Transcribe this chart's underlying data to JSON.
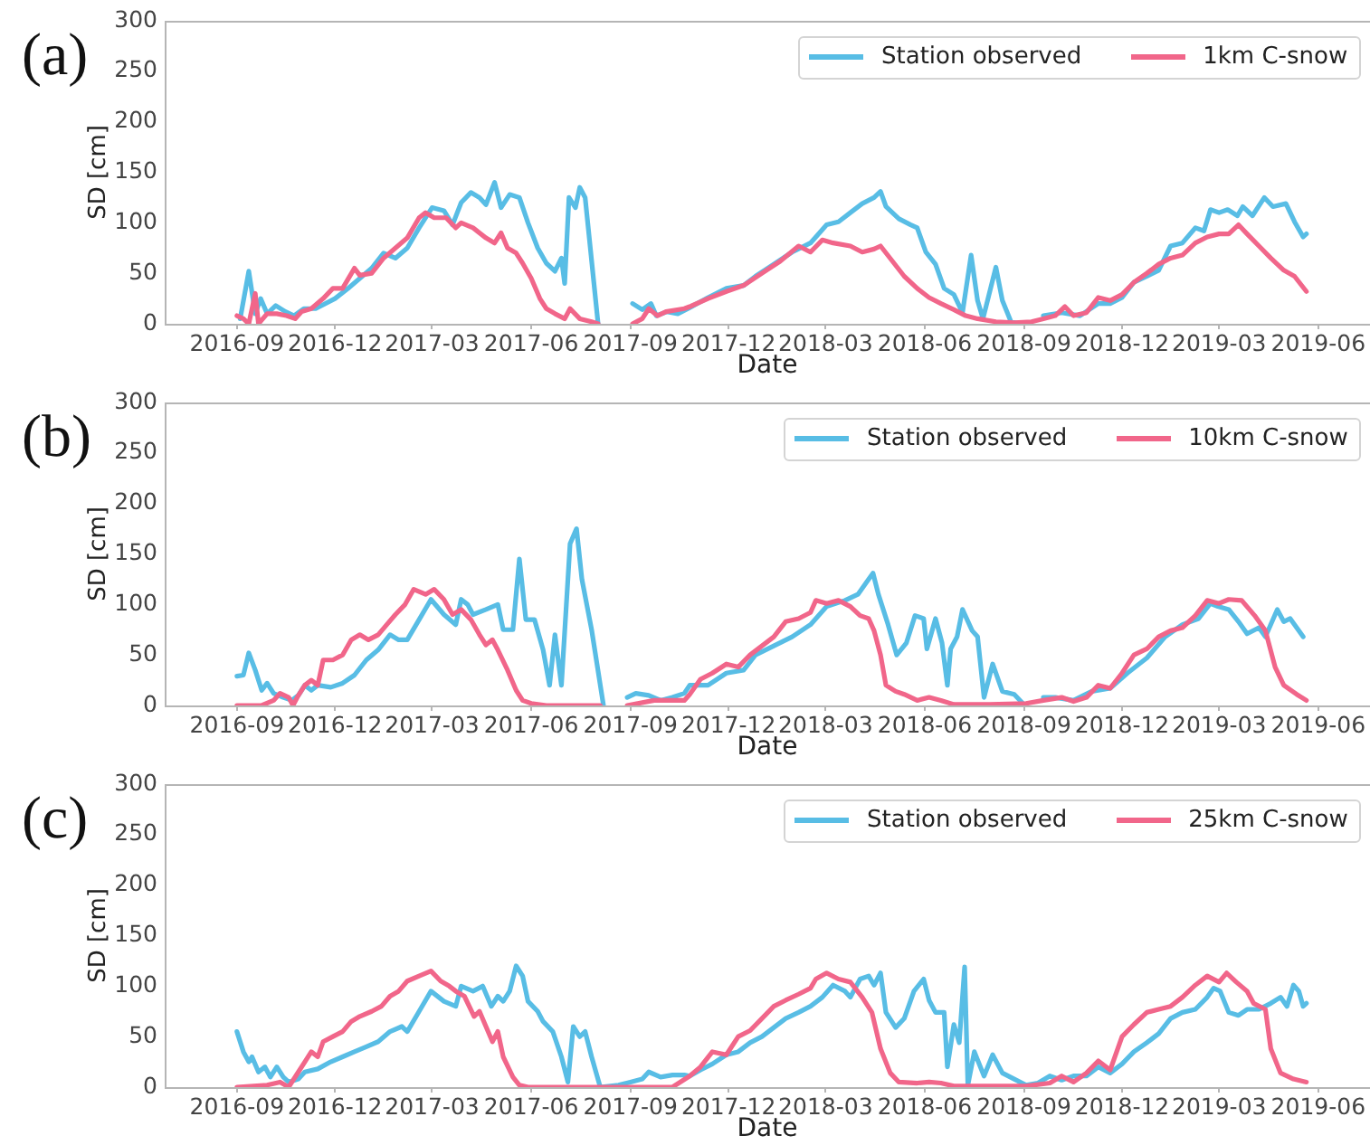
{
  "chart_data": [
    {
      "type": "line",
      "title": "(a)",
      "xlabel": "Date",
      "ylabel": "SD [cm]",
      "xlim": [
        "2016-06-26",
        "2019-07-19"
      ],
      "xticks": [
        "2016-09",
        "2016-12",
        "2017-03",
        "2017-06",
        "2017-09",
        "2017-12",
        "2018-03",
        "2018-06",
        "2018-09",
        "2018-12",
        "2019-03",
        "2019-06"
      ],
      "ylim": [
        0,
        300
      ],
      "yticks": [
        0,
        50,
        100,
        150,
        200,
        250,
        300
      ],
      "grid": false,
      "legend": "top right",
      "marker": "none",
      "series": [
        {
          "name": "Station observed",
          "color": "#58bde5",
          "x": [
            "2016-09-04",
            "2016-09-12",
            "2016-09-18",
            "2016-09-23",
            "2016-09-29",
            "2016-10-07",
            "2016-10-16",
            "2016-10-24",
            "2016-11-02",
            "2016-11-13",
            "2016-12-01",
            "2016-12-13",
            "2016-12-24",
            "2017-01-04",
            "2017-01-15",
            "2017-01-26",
            "2017-02-06",
            "2017-02-17",
            "2017-03-01",
            "2017-03-12",
            "2017-03-20",
            "2017-03-28",
            "2017-04-06",
            "2017-04-14",
            "2017-04-20",
            "2017-04-28",
            "2017-05-04",
            "2017-05-12",
            "2017-05-21",
            "2017-05-29",
            "2017-06-07",
            "2017-06-15",
            "2017-06-23",
            "2017-06-29",
            "2017-07-02",
            "2017-07-06",
            "2017-07-12",
            "2017-07-16",
            "2017-07-21",
            "2017-08-02",
            "2017-08-18",
            "2017-09-03",
            "2017-09-12",
            "2017-09-20",
            "2017-09-25",
            "2017-10-05",
            "2017-10-15",
            "2017-10-26",
            "2017-11-12",
            "2017-11-29",
            "2017-12-15",
            "2017-12-26",
            "2018-01-12",
            "2018-01-29",
            "2018-02-15",
            "2018-03-02",
            "2018-03-13",
            "2018-03-24",
            "2018-04-04",
            "2018-04-15",
            "2018-04-21",
            "2018-04-26",
            "2018-05-08",
            "2018-05-19",
            "2018-05-25",
            "2018-06-02",
            "2018-06-11",
            "2018-06-19",
            "2018-06-28",
            "2018-07-06",
            "2018-07-14",
            "2018-07-20",
            "2018-07-25",
            "2018-08-06",
            "2018-08-12",
            "2018-08-20",
            "2018-08-28",
            "2018-09-08",
            "2018-09-19",
            "2018-10-06",
            "2018-10-23",
            "2018-11-09",
            "2018-11-20",
            "2018-12-01",
            "2018-12-12",
            "2018-12-24",
            "2019-01-04",
            "2019-01-15",
            "2019-01-26",
            "2019-02-07",
            "2019-02-15",
            "2019-02-21",
            "2019-03-01",
            "2019-03-09",
            "2019-03-18",
            "2019-03-23",
            "2019-04-01",
            "2019-04-12",
            "2019-04-20",
            "2019-05-02",
            "2019-05-10",
            "2019-05-18",
            "2019-05-21"
          ],
          "values": [
            5,
            52,
            10,
            25,
            10,
            18,
            12,
            8,
            15,
            15,
            25,
            35,
            45,
            55,
            70,
            65,
            75,
            95,
            115,
            112,
            98,
            120,
            130,
            125,
            118,
            140,
            115,
            128,
            125,
            100,
            75,
            60,
            52,
            65,
            40,
            125,
            115,
            135,
            125,
            0,
            null,
            20,
            14,
            20,
            8,
            12,
            10,
            16,
            26,
            35,
            38,
            47,
            59,
            71,
            80,
            98,
            101,
            110,
            119,
            125,
            131,
            116,
            104,
            98,
            95,
            71,
            59,
            35,
            29,
            11,
            68,
            23,
            5,
            56,
            23,
            2,
            0,
            null,
            8,
            11,
            8,
            20,
            20,
            26,
            41,
            47,
            53,
            77,
            80,
            95,
            92,
            113,
            110,
            113,
            107,
            116,
            107,
            125,
            116,
            119,
            101,
            86,
            89
          ]
        },
        {
          "name": "1km C-snow",
          "color": "#f1668a",
          "x": [
            "2016-09-01",
            "2016-09-07",
            "2016-09-12",
            "2016-09-18",
            "2016-09-21",
            "2016-09-29",
            "2016-10-08",
            "2016-10-17",
            "2016-10-25",
            "2016-10-31",
            "2016-11-09",
            "2016-11-20",
            "2016-11-29",
            "2016-12-08",
            "2016-12-19",
            "2016-12-24",
            "2017-01-04",
            "2017-01-15",
            "2017-01-26",
            "2017-02-06",
            "2017-02-17",
            "2017-02-23",
            "2017-03-03",
            "2017-03-14",
            "2017-03-23",
            "2017-03-28",
            "2017-04-08",
            "2017-04-20",
            "2017-04-28",
            "2017-05-04",
            "2017-05-10",
            "2017-05-18",
            "2017-05-24",
            "2017-06-01",
            "2017-06-09",
            "2017-06-15",
            "2017-06-23",
            "2017-07-02",
            "2017-07-07",
            "2017-07-16",
            "2017-07-27",
            "2017-08-02",
            "2017-08-18",
            "2017-09-03",
            "2017-09-12",
            "2017-09-18",
            "2017-09-26",
            "2017-10-04",
            "2017-10-21",
            "2017-10-26",
            "2017-11-12",
            "2017-11-29",
            "2017-12-15",
            "2018-01-01",
            "2018-01-18",
            "2018-02-04",
            "2018-02-15",
            "2018-02-26",
            "2018-03-08",
            "2018-03-24",
            "2018-04-04",
            "2018-04-15",
            "2018-04-21",
            "2018-05-02",
            "2018-05-13",
            "2018-05-25",
            "2018-06-05",
            "2018-06-16",
            "2018-06-28",
            "2018-07-09",
            "2018-07-20",
            "2018-08-06",
            "2018-08-23",
            "2018-09-08",
            "2018-09-19",
            "2018-09-30",
            "2018-10-09",
            "2018-10-17",
            "2018-10-29",
            "2018-11-09",
            "2018-11-20",
            "2018-12-01",
            "2018-12-12",
            "2018-12-24",
            "2019-01-04",
            "2019-01-15",
            "2019-01-26",
            "2019-02-07",
            "2019-02-18",
            "2019-03-01",
            "2019-03-10",
            "2019-03-19",
            "2019-03-27",
            "2019-04-07",
            "2019-04-18",
            "2019-04-30",
            "2019-05-10",
            "2019-05-21"
          ],
          "values": [
            8,
            5,
            0,
            30,
            0,
            10,
            10,
            8,
            5,
            12,
            15,
            25,
            35,
            35,
            55,
            48,
            50,
            65,
            75,
            85,
            105,
            110,
            105,
            105,
            95,
            100,
            95,
            85,
            80,
            90,
            75,
            70,
            60,
            45,
            25,
            15,
            10,
            5,
            15,
            5,
            2,
            0,
            null,
            0,
            5,
            15,
            8,
            12,
            15,
            17,
            25,
            32,
            38,
            50,
            62,
            77,
            71,
            83,
            80,
            77,
            71,
            74,
            77,
            62,
            47,
            35,
            26,
            20,
            14,
            8,
            5,
            2,
            1,
            2,
            5,
            8,
            17,
            8,
            11,
            26,
            23,
            29,
            41,
            50,
            59,
            65,
            68,
            80,
            86,
            89,
            89,
            98,
            89,
            77,
            65,
            53,
            47,
            32
          ]
        }
      ]
    },
    {
      "type": "line",
      "title": "(b)",
      "xlabel": "Date",
      "ylabel": "SD [cm]",
      "xlim": [
        "2016-06-26",
        "2019-07-19"
      ],
      "xticks": [
        "2016-09",
        "2016-12",
        "2017-03",
        "2017-06",
        "2017-09",
        "2017-12",
        "2018-03",
        "2018-06",
        "2018-09",
        "2018-12",
        "2019-03",
        "2019-06"
      ],
      "ylim": [
        0,
        300
      ],
      "yticks": [
        0,
        50,
        100,
        150,
        200,
        250,
        300
      ],
      "grid": false,
      "legend": "top right",
      "marker": "none",
      "series": [
        {
          "name": "Station observed",
          "color": "#58bde5",
          "x": [
            "2016-09-01",
            "2016-09-07",
            "2016-09-12",
            "2016-09-18",
            "2016-09-24",
            "2016-09-29",
            "2016-10-05",
            "2016-10-14",
            "2016-10-22",
            "2016-10-28",
            "2016-11-03",
            "2016-11-09",
            "2016-11-15",
            "2016-11-27",
            "2016-12-08",
            "2016-12-19",
            "2016-12-30",
            "2017-01-10",
            "2017-01-21",
            "2017-01-29",
            "2017-02-06",
            "2017-02-17",
            "2017-02-28",
            "2017-03-12",
            "2017-03-23",
            "2017-03-28",
            "2017-04-03",
            "2017-04-08",
            "2017-04-20",
            "2017-05-01",
            "2017-05-06",
            "2017-05-15",
            "2017-05-21",
            "2017-05-27",
            "2017-06-04",
            "2017-06-12",
            "2017-06-18",
            "2017-06-23",
            "2017-06-29",
            "2017-07-07",
            "2017-07-13",
            "2017-07-18",
            "2017-07-27",
            "2017-08-07",
            "2017-08-18",
            "2017-08-29",
            "2017-09-06",
            "2017-09-18",
            "2017-09-29",
            "2017-10-10",
            "2017-10-21",
            "2017-10-26",
            "2017-11-12",
            "2017-11-29",
            "2017-12-15",
            "2017-12-26",
            "2018-01-12",
            "2018-01-29",
            "2018-02-15",
            "2018-03-02",
            "2018-03-19",
            "2018-03-31",
            "2018-04-08",
            "2018-04-14",
            "2018-04-19",
            "2018-04-28",
            "2018-05-06",
            "2018-05-15",
            "2018-05-23",
            "2018-05-31",
            "2018-06-03",
            "2018-06-11",
            "2018-06-17",
            "2018-06-22",
            "2018-06-25",
            "2018-07-01",
            "2018-07-06",
            "2018-07-15",
            "2018-07-20",
            "2018-07-26",
            "2018-08-03",
            "2018-08-12",
            "2018-08-23",
            "2018-08-31",
            "2018-09-10",
            "2018-09-19",
            "2018-09-30",
            "2018-10-17",
            "2018-11-03",
            "2018-11-20",
            "2018-12-06",
            "2018-12-24",
            "2019-01-10",
            "2019-01-26",
            "2019-02-10",
            "2019-02-21",
            "2019-02-28",
            "2019-03-10",
            "2019-03-19",
            "2019-03-27",
            "2019-04-07",
            "2019-04-13",
            "2019-04-24",
            "2019-04-30",
            "2019-05-06",
            "2019-05-12",
            "2019-05-18"
          ],
          "values": [
            29,
            30,
            52,
            35,
            15,
            22,
            12,
            8,
            5,
            10,
            20,
            15,
            20,
            18,
            22,
            30,
            45,
            55,
            70,
            65,
            65,
            85,
            105,
            90,
            80,
            105,
            100,
            90,
            95,
            100,
            75,
            75,
            145,
            85,
            85,
            55,
            20,
            70,
            20,
            160,
            175,
            125,
            75,
            0,
            null,
            8,
            12,
            10,
            5,
            8,
            12,
            20,
            20,
            32,
            35,
            50,
            59,
            68,
            80,
            98,
            104,
            110,
            122,
            131,
            110,
            80,
            50,
            62,
            89,
            86,
            56,
            86,
            62,
            20,
            56,
            68,
            95,
            74,
            68,
            8,
            41,
            14,
            11,
            2,
            null,
            8,
            8,
            5,
            14,
            17,
            32,
            47,
            68,
            80,
            86,
            101,
            98,
            95,
            83,
            71,
            77,
            68,
            95,
            83,
            86,
            77,
            68
          ]
        },
        {
          "name": "10km C-snow",
          "color": "#f1668a",
          "x": [
            "2016-09-01",
            "2016-09-24",
            "2016-10-05",
            "2016-10-11",
            "2016-10-19",
            "2016-10-23",
            "2016-10-28",
            "2016-11-03",
            "2016-11-09",
            "2016-11-15",
            "2016-11-20",
            "2016-11-29",
            "2016-12-08",
            "2016-12-16",
            "2016-12-24",
            "2017-01-01",
            "2017-01-10",
            "2017-01-18",
            "2017-01-26",
            "2017-02-04",
            "2017-02-12",
            "2017-02-23",
            "2017-03-03",
            "2017-03-12",
            "2017-03-20",
            "2017-03-28",
            "2017-04-06",
            "2017-04-14",
            "2017-04-20",
            "2017-04-26",
            "2017-05-01",
            "2017-05-10",
            "2017-05-18",
            "2017-05-24",
            "2017-06-01",
            "2017-06-15",
            "2017-08-04",
            "2017-08-18",
            "2017-08-29",
            "2017-09-23",
            "2017-10-21",
            "2017-10-26",
            "2017-11-05",
            "2017-11-16",
            "2017-11-29",
            "2017-12-10",
            "2017-12-21",
            "2018-01-01",
            "2018-01-12",
            "2018-01-23",
            "2018-02-04",
            "2018-02-15",
            "2018-02-20",
            "2018-03-02",
            "2018-03-13",
            "2018-03-24",
            "2018-04-02",
            "2018-04-10",
            "2018-04-15",
            "2018-04-21",
            "2018-04-26",
            "2018-05-05",
            "2018-05-13",
            "2018-05-25",
            "2018-06-05",
            "2018-06-16",
            "2018-06-28",
            "2018-07-31",
            "2018-09-03",
            "2018-09-19",
            "2018-10-06",
            "2018-10-17",
            "2018-10-29",
            "2018-11-09",
            "2018-11-20",
            "2018-12-01",
            "2018-12-12",
            "2018-12-24",
            "2019-01-04",
            "2019-01-15",
            "2019-01-26",
            "2019-02-07",
            "2019-02-18",
            "2019-03-01",
            "2019-03-10",
            "2019-03-22",
            "2019-04-03",
            "2019-04-13",
            "2019-04-22",
            "2019-04-30",
            "2019-05-12",
            "2019-05-21"
          ],
          "values": [
            0,
            0,
            5,
            12,
            8,
            0,
            10,
            20,
            25,
            20,
            45,
            45,
            50,
            65,
            70,
            65,
            70,
            80,
            90,
            100,
            115,
            110,
            115,
            105,
            90,
            95,
            85,
            70,
            60,
            65,
            55,
            35,
            15,
            5,
            2,
            0,
            0,
            null,
            0,
            5,
            5,
            11,
            26,
            32,
            41,
            38,
            50,
            59,
            68,
            83,
            86,
            92,
            104,
            101,
            104,
            98,
            89,
            86,
            74,
            50,
            20,
            14,
            11,
            5,
            8,
            5,
            1,
            1,
            2,
            5,
            8,
            4,
            8,
            20,
            17,
            32,
            50,
            56,
            68,
            74,
            77,
            89,
            104,
            101,
            105,
            104,
            89,
            74,
            38,
            20,
            11,
            5
          ]
        }
      ]
    },
    {
      "type": "line",
      "title": "(c)",
      "xlabel": "Date",
      "ylabel": "SD [cm]",
      "xlim": [
        "2016-06-26",
        "2019-07-19"
      ],
      "xticks": [
        "2016-09",
        "2016-12",
        "2017-03",
        "2017-06",
        "2017-09",
        "2017-12",
        "2018-03",
        "2018-06",
        "2018-09",
        "2018-12",
        "2019-03",
        "2019-06"
      ],
      "ylim": [
        0,
        300
      ],
      "yticks": [
        0,
        50,
        100,
        150,
        200,
        250,
        300
      ],
      "grid": false,
      "legend": "top right",
      "marker": "none",
      "series": [
        {
          "name": "Station observed",
          "color": "#58bde5",
          "x": [
            "2016-09-01",
            "2016-09-07",
            "2016-09-12",
            "2016-09-15",
            "2016-09-21",
            "2016-09-27",
            "2016-10-02",
            "2016-10-08",
            "2016-10-14",
            "2016-10-19",
            "2016-10-28",
            "2016-11-03",
            "2016-11-15",
            "2016-11-27",
            "2016-12-08",
            "2016-12-19",
            "2016-12-30",
            "2017-01-10",
            "2017-01-21",
            "2017-02-01",
            "2017-02-06",
            "2017-02-17",
            "2017-02-28",
            "2017-03-12",
            "2017-03-23",
            "2017-03-28",
            "2017-04-08",
            "2017-04-17",
            "2017-04-25",
            "2017-05-01",
            "2017-05-06",
            "2017-05-12",
            "2017-05-18",
            "2017-05-24",
            "2017-05-29",
            "2017-06-07",
            "2017-06-12",
            "2017-06-21",
            "2017-06-29",
            "2017-07-05",
            "2017-07-10",
            "2017-07-16",
            "2017-07-21",
            "2017-07-27",
            "2017-08-04",
            "2017-08-21",
            "2017-09-01",
            "2017-09-12",
            "2017-09-18",
            "2017-09-29",
            "2017-10-10",
            "2017-10-21",
            "2017-10-26",
            "2017-11-05",
            "2017-11-16",
            "2017-11-29",
            "2017-12-10",
            "2017-12-21",
            "2018-01-01",
            "2018-01-12",
            "2018-01-23",
            "2018-02-04",
            "2018-02-15",
            "2018-02-26",
            "2018-03-08",
            "2018-03-19",
            "2018-03-24",
            "2018-04-02",
            "2018-04-10",
            "2018-04-15",
            "2018-04-21",
            "2018-04-26",
            "2018-05-05",
            "2018-05-13",
            "2018-05-22",
            "2018-05-31",
            "2018-06-05",
            "2018-06-11",
            "2018-06-19",
            "2018-06-22",
            "2018-06-28",
            "2018-07-03",
            "2018-07-08",
            "2018-07-11",
            "2018-07-17",
            "2018-07-26",
            "2018-08-03",
            "2018-08-12",
            "2018-08-23",
            "2018-09-03",
            "2018-09-14",
            "2018-09-25",
            "2018-10-06",
            "2018-10-17",
            "2018-10-29",
            "2018-11-09",
            "2018-11-20",
            "2018-12-01",
            "2018-12-12",
            "2018-12-24",
            "2019-01-04",
            "2019-01-15",
            "2019-01-26",
            "2019-02-07",
            "2019-02-18",
            "2019-02-24",
            "2019-03-02",
            "2019-03-10",
            "2019-03-19",
            "2019-03-27",
            "2019-04-07",
            "2019-04-18",
            "2019-04-27",
            "2019-05-03",
            "2019-05-09",
            "2019-05-14",
            "2019-05-18",
            "2019-05-21"
          ],
          "values": [
            55,
            35,
            25,
            30,
            15,
            20,
            10,
            20,
            10,
            5,
            8,
            15,
            18,
            25,
            30,
            35,
            40,
            45,
            55,
            60,
            55,
            75,
            95,
            85,
            80,
            100,
            95,
            100,
            80,
            90,
            85,
            95,
            120,
            110,
            85,
            75,
            65,
            55,
            30,
            5,
            60,
            50,
            55,
            30,
            0,
            2,
            5,
            8,
            15,
            10,
            12,
            12,
            11,
            17,
            23,
            32,
            35,
            44,
            50,
            59,
            68,
            74,
            80,
            89,
            101,
            95,
            89,
            107,
            110,
            101,
            113,
            74,
            59,
            68,
            95,
            107,
            86,
            74,
            74,
            20,
            62,
            44,
            119,
            2,
            35,
            11,
            32,
            14,
            8,
            2,
            4,
            11,
            7,
            11,
            11,
            20,
            14,
            23,
            35,
            44,
            53,
            68,
            74,
            77,
            89,
            98,
            95,
            74,
            71,
            77,
            77,
            83,
            89,
            80,
            101,
            95,
            80,
            83
          ]
        },
        {
          "name": "25km C-snow",
          "color": "#f1668a",
          "x": [
            "2016-09-01",
            "2016-09-29",
            "2016-10-11",
            "2016-10-19",
            "2016-10-28",
            "2016-11-03",
            "2016-11-09",
            "2016-11-15",
            "2016-11-20",
            "2016-11-29",
            "2016-12-08",
            "2016-12-16",
            "2016-12-24",
            "2017-01-04",
            "2017-01-13",
            "2017-01-21",
            "2017-01-29",
            "2017-02-06",
            "2017-02-17",
            "2017-02-28",
            "2017-03-09",
            "2017-03-17",
            "2017-03-23",
            "2017-03-31",
            "2017-04-09",
            "2017-04-14",
            "2017-04-20",
            "2017-04-26",
            "2017-05-01",
            "2017-05-06",
            "2017-05-15",
            "2017-05-21",
            "2017-05-29",
            "2017-10-10",
            "2017-10-26",
            "2017-11-05",
            "2017-11-16",
            "2017-11-29",
            "2017-12-10",
            "2017-12-21",
            "2018-01-01",
            "2018-01-12",
            "2018-01-23",
            "2018-02-04",
            "2018-02-15",
            "2018-02-20",
            "2018-03-02",
            "2018-03-13",
            "2018-03-24",
            "2018-04-04",
            "2018-04-13",
            "2018-04-21",
            "2018-04-30",
            "2018-05-08",
            "2018-05-25",
            "2018-06-05",
            "2018-06-16",
            "2018-06-28",
            "2018-07-31",
            "2018-09-03",
            "2018-09-25",
            "2018-10-06",
            "2018-10-17",
            "2018-10-29",
            "2018-11-09",
            "2018-11-20",
            "2018-12-01",
            "2018-12-12",
            "2018-12-24",
            "2019-01-04",
            "2019-01-15",
            "2019-01-26",
            "2019-02-07",
            "2019-02-18",
            "2019-03-01",
            "2019-03-08",
            "2019-03-17",
            "2019-03-27",
            "2019-04-02",
            "2019-04-13",
            "2019-04-18",
            "2019-04-27",
            "2019-05-09",
            "2019-05-21"
          ],
          "values": [
            0,
            2,
            5,
            0,
            15,
            25,
            35,
            30,
            45,
            50,
            55,
            65,
            70,
            75,
            80,
            90,
            95,
            105,
            110,
            115,
            105,
            100,
            95,
            90,
            70,
            75,
            60,
            45,
            55,
            30,
            10,
            2,
            0,
            0,
            11,
            20,
            35,
            32,
            50,
            56,
            68,
            80,
            86,
            92,
            98,
            107,
            113,
            107,
            104,
            89,
            74,
            38,
            14,
            5,
            4,
            5,
            4,
            1,
            1,
            1,
            4,
            11,
            5,
            14,
            26,
            17,
            50,
            62,
            74,
            77,
            80,
            89,
            101,
            110,
            104,
            113,
            104,
            95,
            83,
            77,
            38,
            14,
            8,
            5
          ]
        }
      ]
    }
  ]
}
